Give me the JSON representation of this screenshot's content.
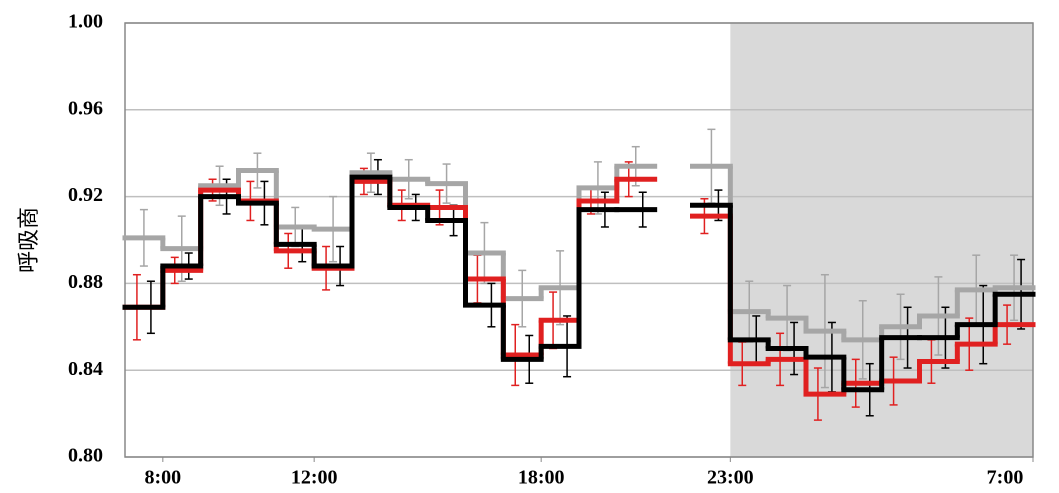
{
  "chart_data": {
    "type": "step",
    "y_label": "呼吸商",
    "x": [
      7,
      8,
      9,
      10,
      11,
      12,
      13,
      14,
      15,
      16,
      17,
      18,
      19,
      20,
      21,
      22,
      23,
      24,
      25,
      26,
      27,
      28,
      29,
      30
    ],
    "xlim": [
      7,
      31
    ],
    "xticks": [
      {
        "value": 8,
        "label": "8:00"
      },
      {
        "value": 12,
        "label": "12:00"
      },
      {
        "value": 18,
        "label": "18:00"
      },
      {
        "value": 23,
        "label": "23:00"
      },
      {
        "value": 31,
        "label": "7:00"
      }
    ],
    "ylim": [
      0.8,
      1.0
    ],
    "yticks": [
      {
        "value": 0.8,
        "label": "0.80"
      },
      {
        "value": 0.84,
        "label": "0.84"
      },
      {
        "value": 0.88,
        "label": "0.88"
      },
      {
        "value": 0.92,
        "label": "0.92"
      },
      {
        "value": 0.96,
        "label": "0.96"
      },
      {
        "value": 1.0,
        "label": "1.00"
      }
    ],
    "grid": true,
    "shade": {
      "xlim": [
        23,
        31
      ],
      "color": "#d9d9d9"
    },
    "series": [
      {
        "color": "#a6a6a6",
        "values": [
          0.901,
          0.896,
          0.925,
          0.932,
          0.906,
          0.905,
          0.931,
          0.928,
          0.926,
          0.894,
          0.873,
          0.878,
          0.924,
          0.934,
          null,
          0.934,
          0.867,
          0.864,
          0.858,
          0.854,
          0.86,
          0.865,
          0.877,
          0.878
        ],
        "errors": [
          0.013,
          0.015,
          0.009,
          0.008,
          0.009,
          0.015,
          0.009,
          0.009,
          0.009,
          0.014,
          0.013,
          0.017,
          0.012,
          0.009,
          null,
          0.017,
          0.014,
          0.015,
          0.026,
          0.018,
          0.015,
          0.018,
          0.016,
          0.015
        ]
      },
      {
        "color": "#e02020",
        "values": [
          0.869,
          0.886,
          0.923,
          0.918,
          0.895,
          0.887,
          0.927,
          0.916,
          0.915,
          0.882,
          0.847,
          0.863,
          0.918,
          0.928,
          null,
          0.911,
          0.843,
          0.845,
          0.829,
          0.834,
          0.835,
          0.844,
          0.852,
          0.861
        ],
        "errors": [
          0.015,
          0.006,
          0.005,
          0.009,
          0.008,
          0.01,
          0.006,
          0.007,
          0.008,
          0.011,
          0.014,
          0.013,
          0.006,
          0.008,
          null,
          0.008,
          0.01,
          0.012,
          0.012,
          0.011,
          0.011,
          0.01,
          0.012,
          0.009
        ]
      },
      {
        "color": "#000000",
        "values": [
          0.869,
          0.888,
          0.92,
          0.917,
          0.898,
          0.888,
          0.929,
          0.915,
          0.909,
          0.87,
          0.845,
          0.851,
          0.914,
          0.914,
          null,
          0.916,
          0.854,
          0.85,
          0.846,
          0.831,
          0.855,
          0.855,
          0.861,
          0.875
        ],
        "errors": [
          0.012,
          0.006,
          0.008,
          0.01,
          0.008,
          0.009,
          0.008,
          0.006,
          0.007,
          0.01,
          0.011,
          0.014,
          0.008,
          0.008,
          null,
          0.007,
          0.011,
          0.012,
          0.016,
          0.012,
          0.014,
          0.014,
          0.018,
          0.016
        ]
      }
    ]
  }
}
